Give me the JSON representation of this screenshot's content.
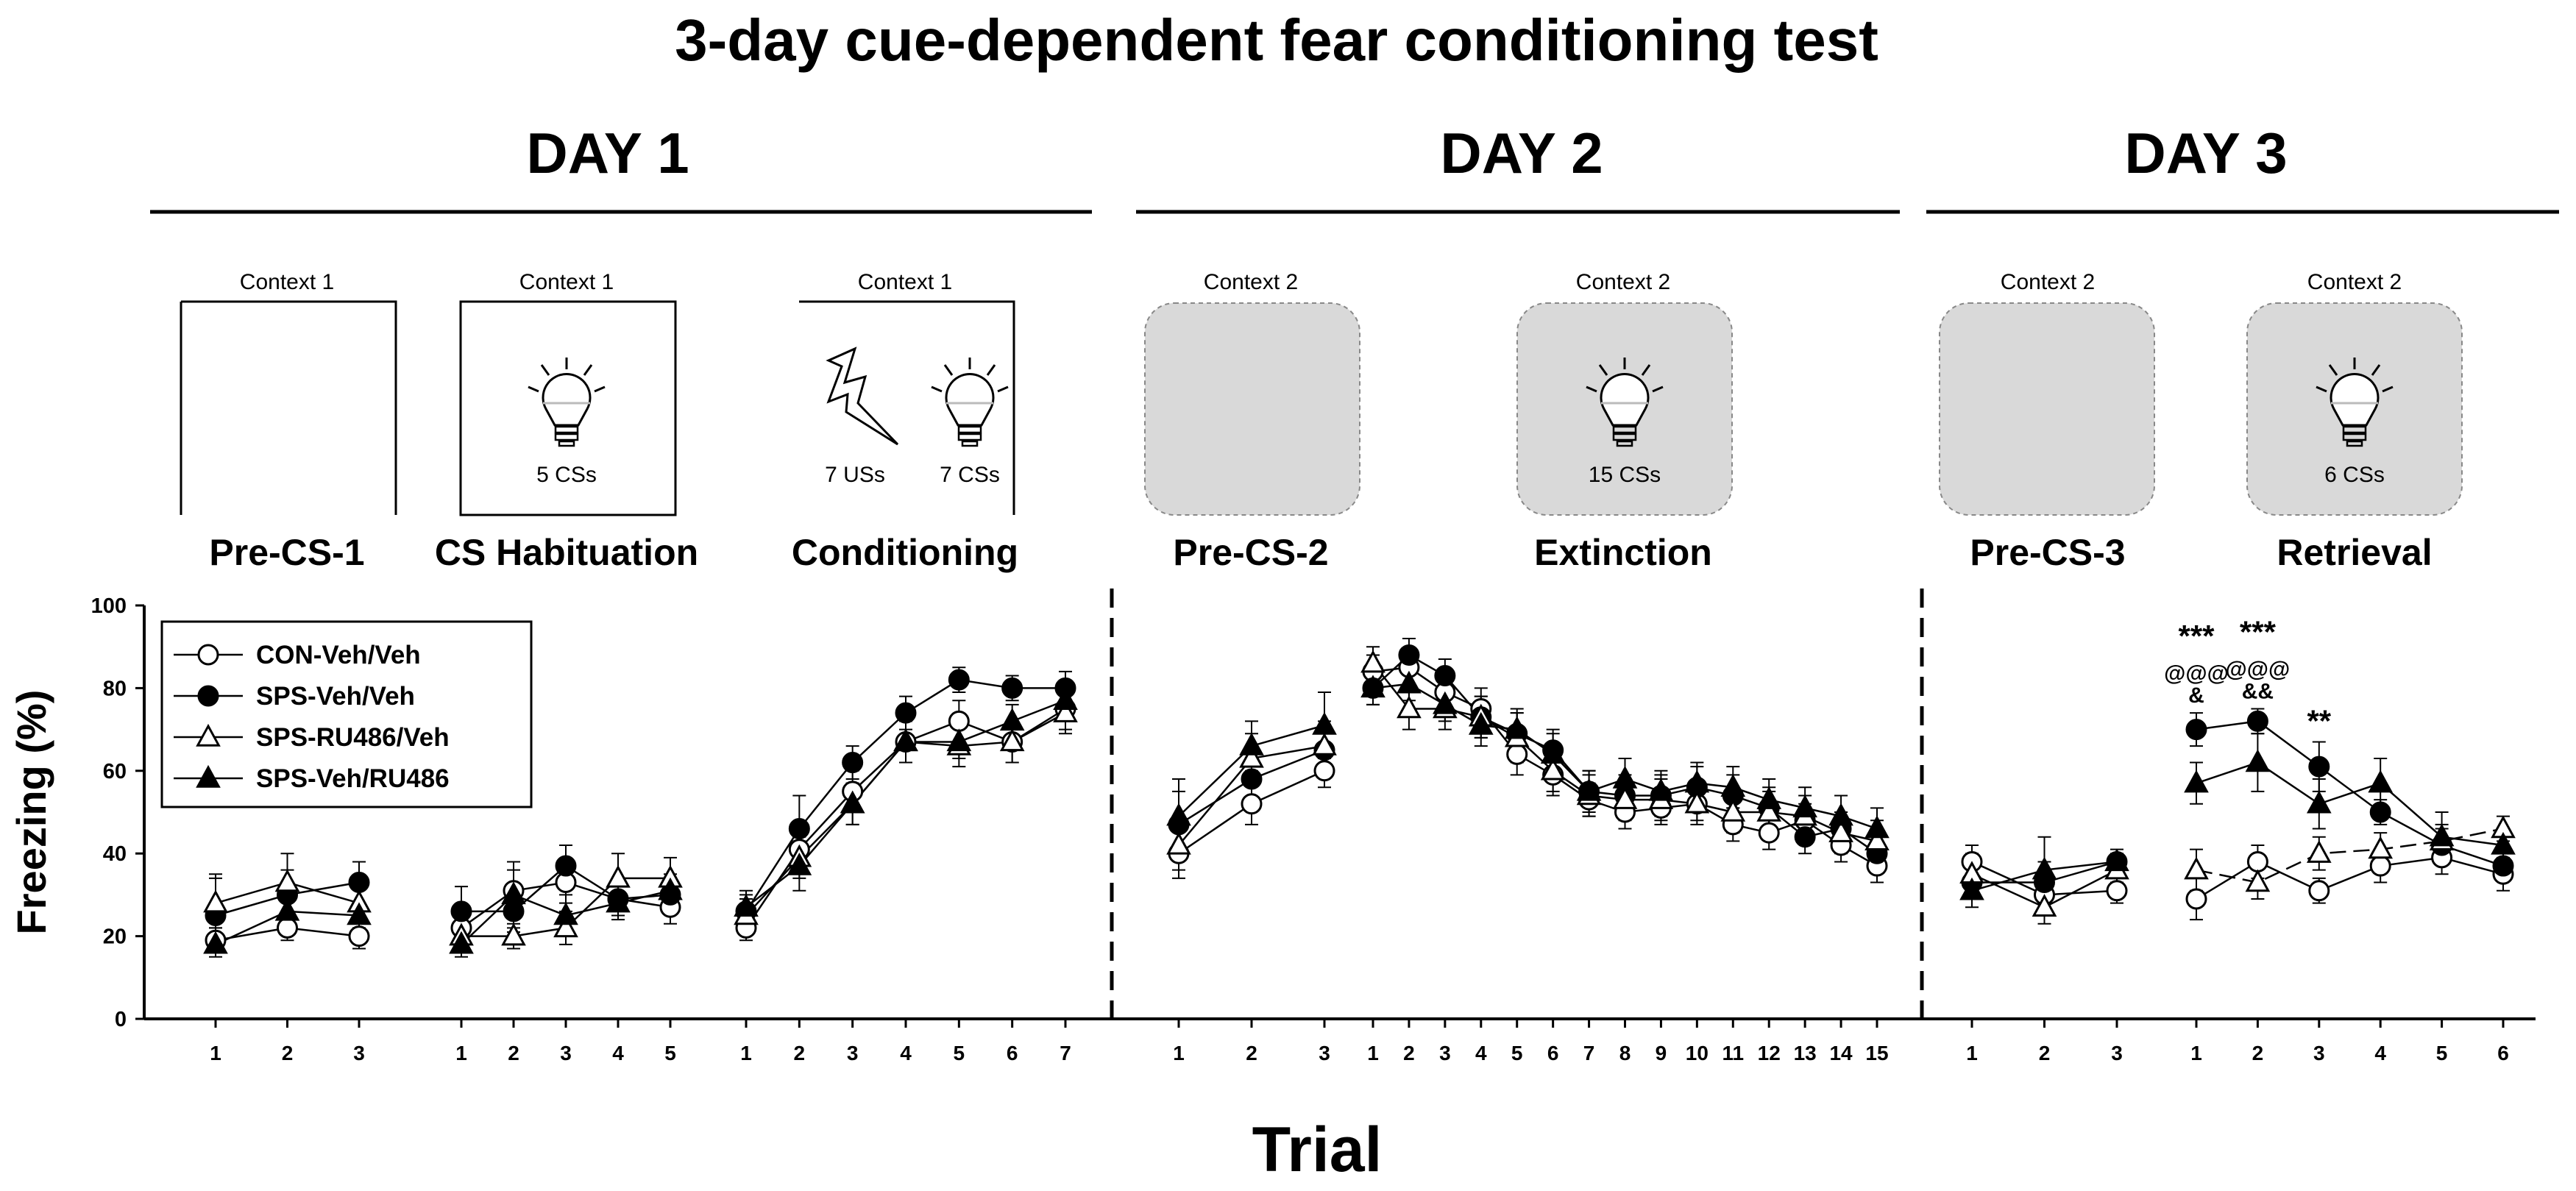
{
  "title": "3-day cue-dependent fear conditioning test",
  "days": [
    "DAY 1",
    "DAY 2",
    "DAY 3"
  ],
  "phases": [
    {
      "label": "Pre-CS-1",
      "context": "Context 1",
      "box": "open",
      "stimuli": []
    },
    {
      "label": "CS Habituation",
      "context": "Context 1",
      "box": "open",
      "stimuli": [
        "bulb"
      ],
      "caption": "5 CSs"
    },
    {
      "label": "Conditioning",
      "context": "Context 1",
      "box": "open",
      "stimuli": [
        "shock",
        "bulb"
      ],
      "captions": [
        "7 USs",
        "7 CSs"
      ]
    },
    {
      "label": "Pre-CS-2",
      "context": "Context 2",
      "box": "rounded",
      "stimuli": []
    },
    {
      "label": "Extinction",
      "context": "Context 2",
      "box": "rounded",
      "stimuli": [
        "bulb"
      ],
      "caption": "15 CSs"
    },
    {
      "label": "Pre-CS-3",
      "context": "Context 2",
      "box": "rounded",
      "stimuli": []
    },
    {
      "label": "Retrieval",
      "context": "Context 2",
      "box": "rounded",
      "stimuli": [
        "bulb"
      ],
      "caption": "6 CSs"
    }
  ],
  "colors": {
    "ink": "#000000",
    "gray_box": "#d9d9d9"
  },
  "chart_data": {
    "type": "line",
    "ylabel": "Freezing (%)",
    "xlabel": "Trial",
    "ylim": [
      0,
      100
    ],
    "yticks": [
      "0",
      "20",
      "40",
      "60",
      "80",
      "100"
    ],
    "legend": {
      "placement": "top-left",
      "entries": [
        "CON-Veh/Veh",
        "SPS-Veh/Veh",
        "SPS-RU486/Veh",
        "SPS-Veh/RU486"
      ]
    },
    "segments": [
      {
        "phase": "Pre-CS-1",
        "trials": [
          "1",
          "2",
          "3"
        ],
        "series": [
          {
            "name": "CON-Veh/Veh",
            "marker": "circle-open",
            "values": [
              19,
              22,
              20
            ],
            "err": [
              3,
              3,
              3
            ]
          },
          {
            "name": "SPS-Veh/Veh",
            "marker": "circle-filled",
            "values": [
              25,
              30,
              33
            ],
            "err": [
              10,
              6,
              5
            ]
          },
          {
            "name": "SPS-RU486/Veh",
            "marker": "triangle-open",
            "values": [
              28,
              33,
              28
            ],
            "err": [
              6,
              7,
              5
            ]
          },
          {
            "name": "SPS-Veh/RU486",
            "marker": "triangle-filled",
            "values": [
              18,
              26,
              25
            ],
            "err": [
              2,
              4,
              3
            ]
          }
        ]
      },
      {
        "phase": "CS Habituation",
        "trials": [
          "1",
          "2",
          "3",
          "4",
          "5"
        ],
        "series": [
          {
            "name": "CON-Veh/Veh",
            "marker": "circle-open",
            "values": [
              22,
              31,
              33,
              29,
              27
            ],
            "err": [
              4,
              5,
              5,
              4,
              4
            ]
          },
          {
            "name": "SPS-Veh/Veh",
            "marker": "circle-filled",
            "values": [
              26,
              26,
              37,
              29,
              30
            ],
            "err": [
              6,
              5,
              5,
              4,
              4
            ]
          },
          {
            "name": "SPS-RU486/Veh",
            "marker": "triangle-open",
            "values": [
              20,
              20,
              22,
              34,
              34
            ],
            "err": [
              4,
              3,
              4,
              6,
              5
            ]
          },
          {
            "name": "SPS-Veh/RU486",
            "marker": "triangle-filled",
            "values": [
              18,
              30,
              25,
              28,
              31
            ],
            "err": [
              3,
              8,
              5,
              4,
              4
            ]
          }
        ]
      },
      {
        "phase": "Conditioning",
        "trials": [
          "1",
          "2",
          "3",
          "4",
          "5",
          "6",
          "7"
        ],
        "series": [
          {
            "name": "CON-Veh/Veh",
            "marker": "circle-open",
            "values": [
              22,
              41,
              55,
              67,
              72,
              67,
              75
            ],
            "err": [
              3,
              5,
              5,
              5,
              5,
              5,
              5
            ]
          },
          {
            "name": "SPS-Veh/Veh",
            "marker": "circle-filled",
            "values": [
              26,
              46,
              62,
              74,
              82,
              80,
              80
            ],
            "err": [
              4,
              8,
              4,
              4,
              3,
              3,
              4
            ]
          },
          {
            "name": "SPS-RU486/Veh",
            "marker": "triangle-open",
            "values": [
              25,
              39,
              52,
              67,
              66,
              67,
              74
            ],
            "err": [
              4,
              5,
              5,
              5,
              5,
              5,
              5
            ]
          },
          {
            "name": "SPS-Veh/RU486",
            "marker": "triangle-filled",
            "values": [
              27,
              37,
              52,
              67,
              67,
              72,
              77
            ],
            "err": [
              4,
              6,
              5,
              5,
              4,
              4,
              4
            ]
          }
        ]
      },
      {
        "phase": "Pre-CS-2",
        "trials": [
          "1",
          "2",
          "3"
        ],
        "series": [
          {
            "name": "CON-Veh/Veh",
            "marker": "circle-open",
            "values": [
              40,
              52,
              60
            ],
            "err": [
              6,
              5,
              4
            ]
          },
          {
            "name": "SPS-Veh/Veh",
            "marker": "circle-filled",
            "values": [
              47,
              58,
              65
            ],
            "err": [
              8,
              6,
              6
            ]
          },
          {
            "name": "SPS-RU486/Veh",
            "marker": "triangle-open",
            "values": [
              42,
              63,
              66
            ],
            "err": [
              6,
              6,
              6
            ]
          },
          {
            "name": "SPS-Veh/RU486",
            "marker": "triangle-filled",
            "values": [
              49,
              66,
              71
            ],
            "err": [
              9,
              6,
              8
            ]
          }
        ]
      },
      {
        "phase": "Extinction",
        "trials": [
          "1",
          "2",
          "3",
          "4",
          "5",
          "6",
          "7",
          "8",
          "9",
          "10",
          "11",
          "12",
          "13",
          "14",
          "15"
        ],
        "series": [
          {
            "name": "CON-Veh/Veh",
            "marker": "circle-open",
            "values": [
              84,
              85,
              79,
              75,
              64,
              59,
              53,
              50,
              51,
              52,
              47,
              45,
              48,
              42,
              37
            ],
            "err": [
              4,
              4,
              5,
              5,
              5,
              5,
              4,
              4,
              4,
              4,
              4,
              4,
              4,
              4,
              4
            ]
          },
          {
            "name": "SPS-Veh/Veh",
            "marker": "circle-filled",
            "values": [
              80,
              88,
              83,
              73,
              69,
              65,
              55,
              54,
              54,
              56,
              54,
              51,
              44,
              46,
              40
            ],
            "err": [
              4,
              4,
              4,
              5,
              5,
              5,
              5,
              5,
              5,
              5,
              5,
              5,
              4,
              4,
              4
            ]
          },
          {
            "name": "SPS-RU486/Veh",
            "marker": "triangle-open",
            "values": [
              86,
              75,
              75,
              73,
              68,
              60,
              54,
              53,
              53,
              52,
              50,
              50,
              49,
              45,
              43
            ],
            "err": [
              4,
              5,
              5,
              5,
              6,
              5,
              5,
              5,
              5,
              5,
              5,
              5,
              5,
              5,
              5
            ]
          },
          {
            "name": "SPS-Veh/RU486",
            "marker": "triangle-filled",
            "values": [
              80,
              81,
              76,
              71,
              70,
              64,
              55,
              58,
              55,
              57,
              56,
              53,
              51,
              49,
              46
            ],
            "err": [
              4,
              4,
              4,
              5,
              5,
              5,
              5,
              5,
              5,
              5,
              5,
              5,
              5,
              5,
              5
            ]
          }
        ]
      },
      {
        "phase": "Pre-CS-3",
        "trials": [
          "1",
          "2",
          "3"
        ],
        "series": [
          {
            "name": "CON-Veh/Veh",
            "marker": "circle-open",
            "values": [
              38,
              30,
              31
            ],
            "err": [
              4,
              4,
              3
            ]
          },
          {
            "name": "SPS-Veh/Veh",
            "marker": "circle-filled",
            "values": [
              33,
              33,
              38
            ],
            "err": [
              4,
              5,
              2
            ]
          },
          {
            "name": "SPS-RU486/Veh",
            "marker": "triangle-open",
            "values": [
              35,
              27,
              36
            ],
            "err": [
              5,
              4,
              3
            ]
          },
          {
            "name": "SPS-Veh/RU486",
            "marker": "triangle-filled",
            "values": [
              31,
              36,
              38
            ],
            "err": [
              4,
              8,
              3
            ]
          }
        ]
      },
      {
        "phase": "Retrieval",
        "trials": [
          "1",
          "2",
          "3",
          "4",
          "5",
          "6"
        ],
        "series": [
          {
            "name": "CON-Veh/Veh",
            "marker": "circle-open",
            "values": [
              29,
              38,
              31,
              37,
              39,
              35
            ],
            "err": [
              5,
              4,
              3,
              4,
              4,
              4
            ]
          },
          {
            "name": "SPS-Veh/Veh",
            "marker": "circle-filled",
            "values": [
              70,
              72,
              61,
              50,
              42,
              37
            ],
            "err": [
              4,
              3,
              6,
              3,
              4,
              3
            ]
          },
          {
            "name": "SPS-RU486/Veh",
            "marker": "triangle-open",
            "values": [
              36,
              33,
              40,
              41,
              43,
              46
            ],
            "err": [
              5,
              4,
              4,
              4,
              4,
              3
            ]
          },
          {
            "name": "SPS-Veh/RU486",
            "marker": "triangle-filled",
            "values": [
              57,
              62,
              52,
              57,
              44,
              42
            ],
            "err": [
              5,
              7,
              6,
              6,
              6,
              4
            ]
          }
        ]
      }
    ],
    "annotations": [
      {
        "segment": "Retrieval",
        "trial": "1",
        "lines": [
          "***",
          "@@@",
          "&"
        ]
      },
      {
        "segment": "Retrieval",
        "trial": "2",
        "lines": [
          "***",
          "@@@",
          "&&"
        ]
      },
      {
        "segment": "Retrieval",
        "trial": "3",
        "lines": [
          "**"
        ]
      }
    ]
  }
}
